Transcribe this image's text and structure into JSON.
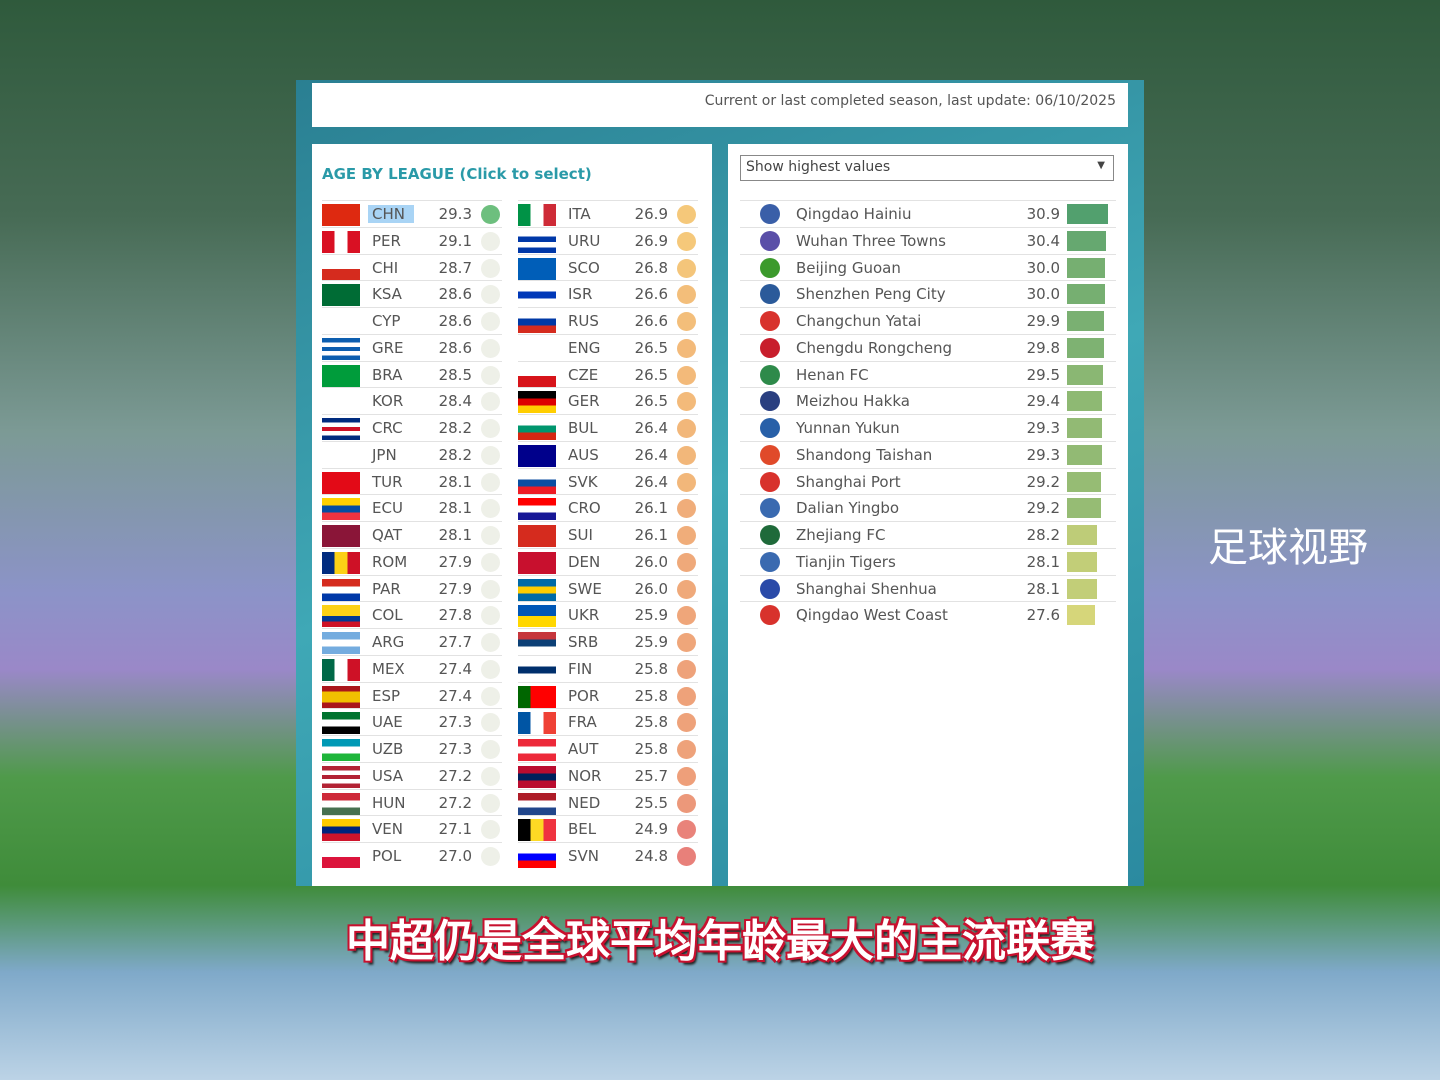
{
  "header": {
    "note": "Current or last completed season, last update: 06/10/2025"
  },
  "left": {
    "title": "AGE BY LEAGUE (Click to select)",
    "selected": "CHN",
    "col1": [
      [
        "CHN",
        29.3
      ],
      [
        "PER",
        29.1
      ],
      [
        "CHI",
        28.7
      ],
      [
        "KSA",
        28.6
      ],
      [
        "CYP",
        28.6
      ],
      [
        "GRE",
        28.6
      ],
      [
        "BRA",
        28.5
      ],
      [
        "KOR",
        28.4
      ],
      [
        "CRC",
        28.2
      ],
      [
        "JPN",
        28.2
      ],
      [
        "TUR",
        28.1
      ],
      [
        "ECU",
        28.1
      ],
      [
        "QAT",
        28.1
      ],
      [
        "ROM",
        27.9
      ],
      [
        "PAR",
        27.9
      ],
      [
        "COL",
        27.8
      ],
      [
        "ARG",
        27.7
      ],
      [
        "MEX",
        27.4
      ],
      [
        "ESP",
        27.4
      ],
      [
        "UAE",
        27.3
      ],
      [
        "UZB",
        27.3
      ],
      [
        "USA",
        27.2
      ],
      [
        "HUN",
        27.2
      ],
      [
        "VEN",
        27.1
      ],
      [
        "POL",
        27.0
      ]
    ],
    "col2": [
      [
        "ITA",
        26.9
      ],
      [
        "URU",
        26.9
      ],
      [
        "SCO",
        26.8
      ],
      [
        "ISR",
        26.6
      ],
      [
        "RUS",
        26.6
      ],
      [
        "ENG",
        26.5
      ],
      [
        "CZE",
        26.5
      ],
      [
        "GER",
        26.5
      ],
      [
        "BUL",
        26.4
      ],
      [
        "AUS",
        26.4
      ],
      [
        "SVK",
        26.4
      ],
      [
        "CRO",
        26.1
      ],
      [
        "SUI",
        26.1
      ],
      [
        "DEN",
        26.0
      ],
      [
        "SWE",
        26.0
      ],
      [
        "UKR",
        25.9
      ],
      [
        "SRB",
        25.9
      ],
      [
        "FIN",
        25.8
      ],
      [
        "POR",
        25.8
      ],
      [
        "FRA",
        25.8
      ],
      [
        "AUT",
        25.8
      ],
      [
        "NOR",
        25.7
      ],
      [
        "NED",
        25.5
      ],
      [
        "BEL",
        24.9
      ],
      [
        "SVN",
        24.8
      ]
    ]
  },
  "right": {
    "dropdown": "Show highest values",
    "teams": [
      [
        "Qingdao Hainiu",
        30.9
      ],
      [
        "Wuhan Three Towns",
        30.4
      ],
      [
        "Beijing Guoan",
        30.0
      ],
      [
        "Shenzhen Peng City",
        30.0
      ],
      [
        "Changchun Yatai",
        29.9
      ],
      [
        "Chengdu Rongcheng",
        29.8
      ],
      [
        "Henan FC",
        29.5
      ],
      [
        "Meizhou Hakka",
        29.4
      ],
      [
        "Yunnan Yukun",
        29.3
      ],
      [
        "Shandong Taishan",
        29.3
      ],
      [
        "Shanghai Port",
        29.2
      ],
      [
        "Dalian Yingbo",
        29.2
      ],
      [
        "Zhejiang FC",
        28.2
      ],
      [
        "Tianjin Tigers",
        28.1
      ],
      [
        "Shanghai Shenhua",
        28.1
      ],
      [
        "Qingdao West Coast",
        27.6
      ]
    ]
  },
  "colors": {
    "selected_bg": "#a9d4f5",
    "chn_dot": "#6dbf7e",
    "pale_dot": "#eef0e8",
    "accent": "#2a9aa8"
  },
  "caption": "中超仍是全球平均年龄最大的主流联赛",
  "watermark": "足球视野"
}
